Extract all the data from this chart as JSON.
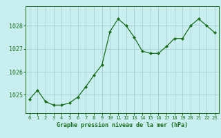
{
  "x": [
    0,
    1,
    2,
    3,
    4,
    5,
    6,
    7,
    8,
    9,
    10,
    11,
    12,
    13,
    14,
    15,
    16,
    17,
    18,
    19,
    20,
    21,
    22,
    23
  ],
  "y": [
    1024.8,
    1025.2,
    1024.7,
    1024.55,
    1024.55,
    1024.65,
    1024.9,
    1025.35,
    1025.85,
    1026.3,
    1027.75,
    1028.3,
    1028.0,
    1027.5,
    1026.9,
    1026.8,
    1026.8,
    1027.1,
    1027.45,
    1027.45,
    1028.0,
    1028.3,
    1028.0,
    1027.7
  ],
  "line_color": "#1a6e1a",
  "marker_color": "#1a6e1a",
  "bg_color": "#c8eef0",
  "grid_color": "#a0c8d0",
  "tick_label_color": "#1a6e1a",
  "xlabel": "Graphe pression niveau de la mer (hPa)",
  "ylim": [
    1024.2,
    1028.85
  ],
  "yticks": [
    1025,
    1026,
    1027,
    1028
  ],
  "xticks": [
    0,
    1,
    2,
    3,
    4,
    5,
    6,
    7,
    8,
    9,
    10,
    11,
    12,
    13,
    14,
    15,
    16,
    17,
    18,
    19,
    20,
    21,
    22,
    23
  ]
}
